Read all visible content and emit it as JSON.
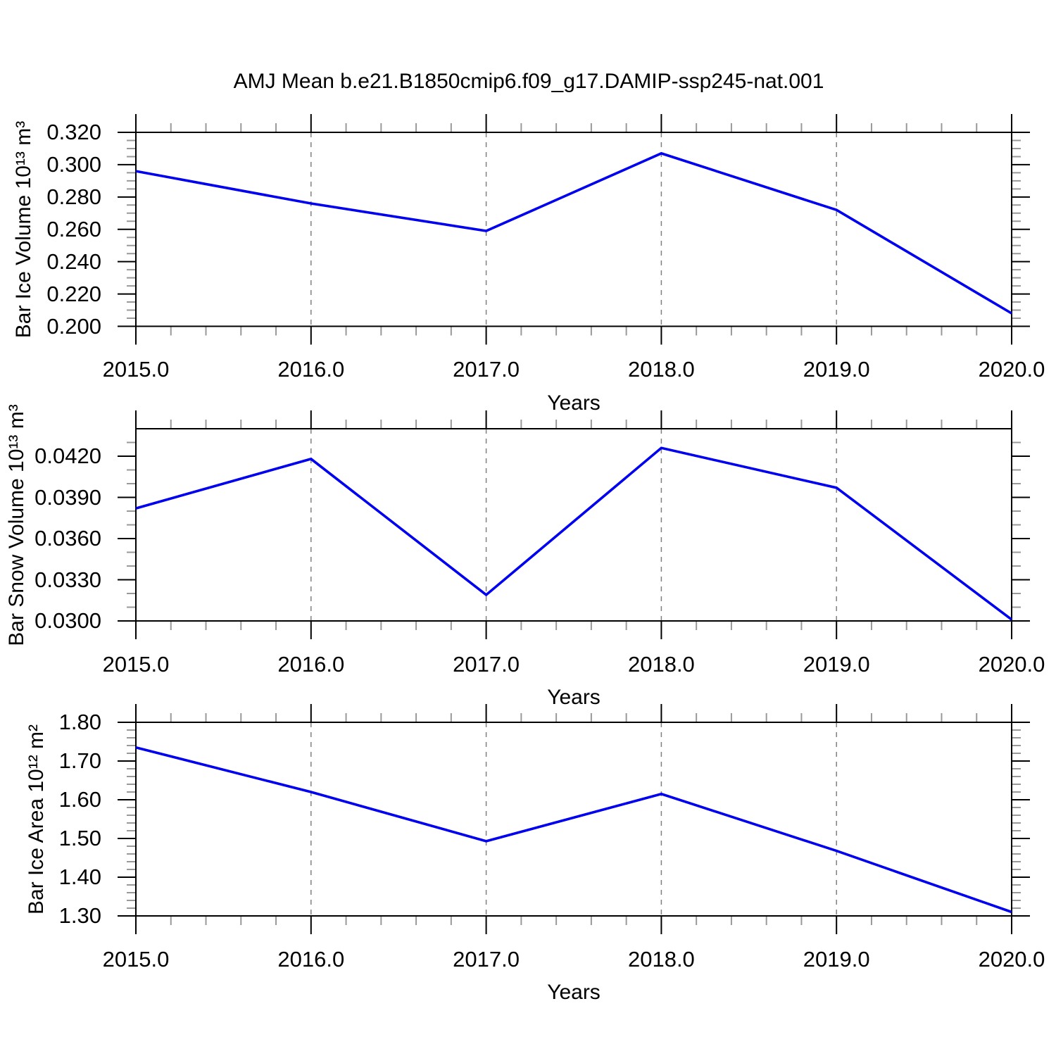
{
  "title": "AMJ Mean b.e21.B1850cmip6.f09_g17.DAMIP-ssp245-nat.001",
  "colors": {
    "line": "#0000f0",
    "grid": "#808080",
    "axis": "#000000",
    "minor_tick": "#999999",
    "background": "#ffffff"
  },
  "chart_data": [
    {
      "type": "line",
      "ylabel": "Bar Ice Volume 10¹³ m³",
      "xlabel": "Years",
      "x": [
        2015,
        2016,
        2017,
        2018,
        2019,
        2020
      ],
      "y": [
        0.296,
        0.276,
        0.259,
        0.307,
        0.272,
        0.208
      ],
      "xlim": [
        2015,
        2020
      ],
      "ylim": [
        0.2,
        0.32
      ],
      "xtick_values": [
        2015,
        2016,
        2017,
        2018,
        2019,
        2020
      ],
      "xtick_labels": [
        "2015.0",
        "2016.0",
        "2017.0",
        "2018.0",
        "2019.0",
        "2020.0"
      ],
      "x_minor_step": 0.2,
      "ytick_values": [
        0.2,
        0.22,
        0.24,
        0.26,
        0.28,
        0.3,
        0.32
      ],
      "ytick_labels": [
        "0.200",
        "0.220",
        "0.240",
        "0.260",
        "0.280",
        "0.300",
        "0.320"
      ],
      "y_minor_step": 0.005,
      "grid_x": [
        2016,
        2017,
        2018,
        2019
      ]
    },
    {
      "type": "line",
      "ylabel": "Bar Snow Volume 10¹³ m³",
      "xlabel": "Years",
      "x": [
        2015,
        2016,
        2017,
        2018,
        2019,
        2020
      ],
      "y": [
        0.0382,
        0.0418,
        0.0319,
        0.0426,
        0.0397,
        0.0301
      ],
      "xlim": [
        2015,
        2020
      ],
      "ylim": [
        0.03,
        0.044
      ],
      "xtick_values": [
        2015,
        2016,
        2017,
        2018,
        2019,
        2020
      ],
      "xtick_labels": [
        "2015.0",
        "2016.0",
        "2017.0",
        "2018.0",
        "2019.0",
        "2020.0"
      ],
      "x_minor_step": 0.2,
      "ytick_values": [
        0.03,
        0.033,
        0.036,
        0.039,
        0.042
      ],
      "ytick_labels": [
        "0.0300",
        "0.0330",
        "0.0360",
        "0.0390",
        "0.0420"
      ],
      "y_minor_step": 0.001,
      "grid_x": [
        2016,
        2017,
        2018,
        2019
      ]
    },
    {
      "type": "line",
      "ylabel": "Bar Ice Area 10¹² m²",
      "xlabel": "Years",
      "x": [
        2015,
        2016,
        2017,
        2018,
        2019,
        2020
      ],
      "y": [
        1.735,
        1.62,
        1.493,
        1.615,
        1.468,
        1.31
      ],
      "xlim": [
        2015,
        2020
      ],
      "ylim": [
        1.3,
        1.8
      ],
      "xtick_values": [
        2015,
        2016,
        2017,
        2018,
        2019,
        2020
      ],
      "xtick_labels": [
        "2015.0",
        "2016.0",
        "2017.0",
        "2018.0",
        "2019.0",
        "2020.0"
      ],
      "x_minor_step": 0.2,
      "ytick_values": [
        1.3,
        1.4,
        1.5,
        1.6,
        1.7,
        1.8
      ],
      "ytick_labels": [
        "1.30",
        "1.40",
        "1.50",
        "1.60",
        "1.70",
        "1.80"
      ],
      "y_minor_step": 0.02,
      "grid_x": [
        2016,
        2017,
        2018,
        2019
      ]
    }
  ]
}
